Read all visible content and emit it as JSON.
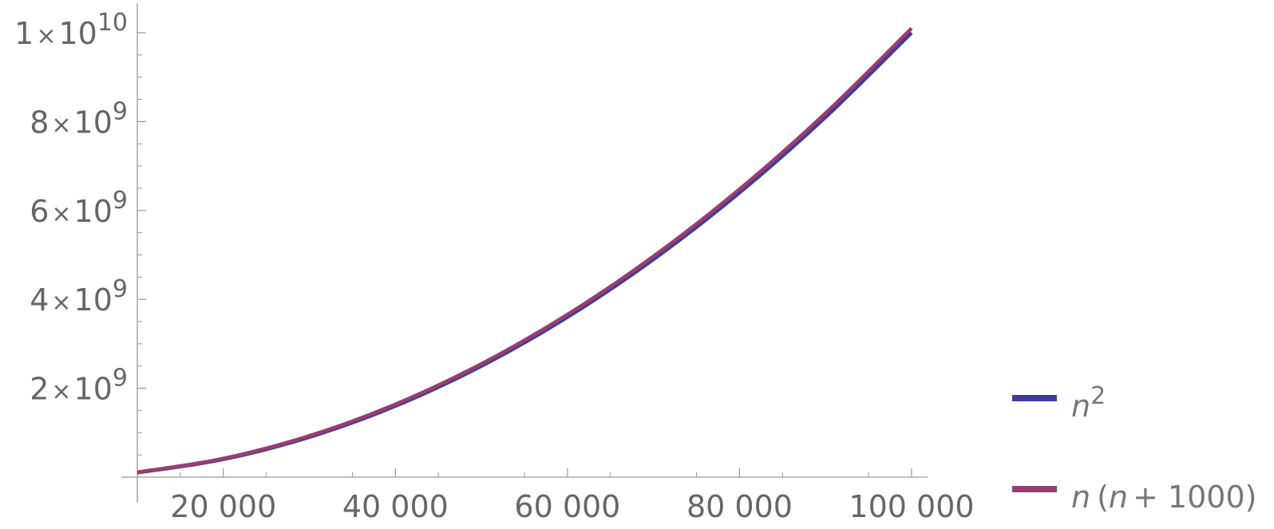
{
  "chart_data": {
    "type": "line",
    "title": "",
    "xlabel": "",
    "ylabel": "",
    "xlim": [
      10000,
      100000
    ],
    "ylim": [
      0,
      10000000000
    ],
    "grid": false,
    "legend_position": "right",
    "x_ticks": [
      {
        "value": 20000,
        "label": "20 000"
      },
      {
        "value": 40000,
        "label": "40 000"
      },
      {
        "value": 60000,
        "label": "60 000"
      },
      {
        "value": 80000,
        "label": "80 000"
      },
      {
        "value": 100000,
        "label": "100 000"
      }
    ],
    "y_ticks": [
      {
        "value": 2000000000,
        "mantissa": "2",
        "times": "×",
        "base": "10",
        "exponent": "9"
      },
      {
        "value": 4000000000,
        "mantissa": "4",
        "times": "×",
        "base": "10",
        "exponent": "9"
      },
      {
        "value": 6000000000,
        "mantissa": "6",
        "times": "×",
        "base": "10",
        "exponent": "9"
      },
      {
        "value": 8000000000,
        "mantissa": "8",
        "times": "×",
        "base": "10",
        "exponent": "9"
      },
      {
        "value": 10000000000,
        "mantissa": "1",
        "times": "×",
        "base": "10",
        "exponent": "10"
      }
    ],
    "series": [
      {
        "color": "#3f3d99",
        "legend": {
          "var": "n",
          "exponent": "2"
        },
        "x": [
          10000,
          20000,
          30000,
          40000,
          50000,
          60000,
          70000,
          80000,
          90000,
          100000
        ],
        "y": [
          100000000,
          400000000,
          900000000,
          1600000000,
          2500000000,
          3600000000,
          4900000000,
          6400000000,
          8100000000,
          10000000000
        ]
      },
      {
        "color": "#993d71",
        "legend": {
          "var1": "n",
          "open": "(",
          "var2": "n",
          "rest": "+ 1000)"
        },
        "x": [
          10000,
          20000,
          30000,
          40000,
          50000,
          60000,
          70000,
          80000,
          90000,
          100000
        ],
        "y": [
          110000000,
          420000000,
          930000000,
          1640000000,
          2550000000,
          3660000000,
          4970000000,
          6480000000,
          8190000000,
          10100000000
        ]
      }
    ]
  }
}
